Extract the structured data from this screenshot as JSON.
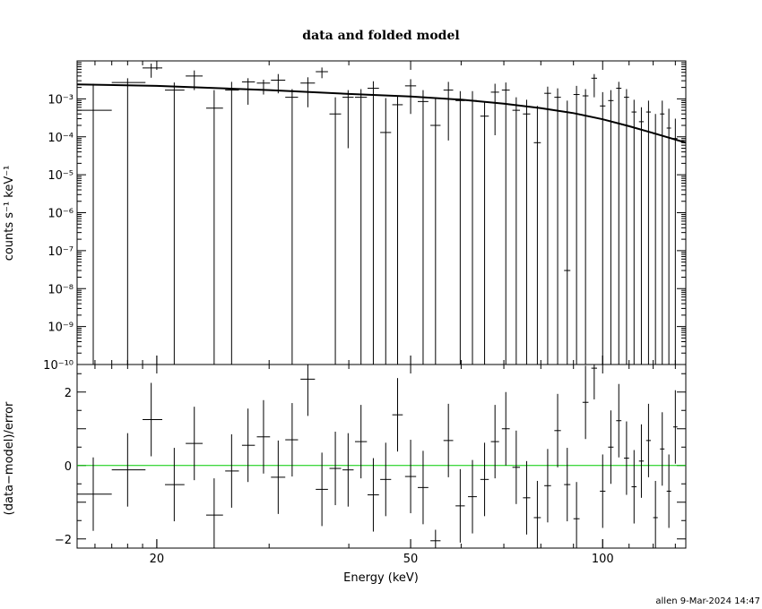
{
  "footer": "allen  9-Mar-2024 14:47",
  "chart_data": [
    {
      "type": "scatter",
      "title": "data and folded model",
      "xlabel": "",
      "ylabel": "counts s⁻¹ keV⁻¹",
      "xscale": "log",
      "yscale": "log",
      "xlim": [
        15,
        135
      ],
      "ylim": [
        1e-10,
        0.01
      ],
      "x_tick_labels": [],
      "y_ticks": [
        {
          "value": 0.001,
          "label": "10⁻³"
        },
        {
          "value": 0.0001,
          "label": "10⁻⁴"
        },
        {
          "value": 1e-05,
          "label": "10⁻⁵"
        },
        {
          "value": 1e-06,
          "label": "10⁻⁶"
        },
        {
          "value": 1e-07,
          "label": "10⁻⁷"
        },
        {
          "value": 1e-08,
          "label": "10⁻⁸"
        },
        {
          "value": 1e-09,
          "label": "10⁻⁹"
        },
        {
          "value": 1e-10,
          "label": "10⁻¹⁰"
        }
      ],
      "model": {
        "x": [
          15,
          20,
          30,
          40,
          50,
          60,
          70,
          80,
          90,
          100,
          110,
          120,
          135
        ],
        "y": [
          0.0024,
          0.0022,
          0.0017,
          0.00135,
          0.00115,
          0.00095,
          0.00075,
          0.00057,
          0.00042,
          0.00029,
          0.00019,
          0.000125,
          7e-05
        ]
      },
      "data": [
        {
          "x": 15.9,
          "xlo": 14.9,
          "xhi": 17.0,
          "y": 0.0005,
          "ylo": 1e-10,
          "yhi": 0.0025
        },
        {
          "x": 18.0,
          "xlo": 17.0,
          "xhi": 19.2,
          "y": 0.0027,
          "ylo": 1e-10,
          "yhi": 0.0035
        },
        {
          "x": 19.6,
          "xlo": 19.0,
          "xhi": 20.4,
          "y": 0.0065,
          "ylo": 0.0036,
          "yhi": 0.0085
        },
        {
          "x": 21.3,
          "xlo": 20.6,
          "xhi": 22.1,
          "y": 0.0017,
          "ylo": 1e-10,
          "yhi": 0.0027
        },
        {
          "x": 22.9,
          "xlo": 22.2,
          "xhi": 23.6,
          "y": 0.004,
          "ylo": 0.0017,
          "yhi": 0.0056
        },
        {
          "x": 24.6,
          "xlo": 23.9,
          "xhi": 25.4,
          "y": 0.00057,
          "ylo": 1e-10,
          "yhi": 0.0017
        },
        {
          "x": 26.2,
          "xlo": 25.6,
          "xhi": 26.9,
          "y": 0.0017,
          "ylo": 1e-10,
          "yhi": 0.0028
        },
        {
          "x": 27.8,
          "xlo": 27.2,
          "xhi": 28.5,
          "y": 0.0028,
          "ylo": 0.0007,
          "yhi": 0.0035
        },
        {
          "x": 29.4,
          "xlo": 28.7,
          "xhi": 30.1,
          "y": 0.0026,
          "ylo": 0.0013,
          "yhi": 0.0032
        },
        {
          "x": 31.0,
          "xlo": 30.2,
          "xhi": 31.8,
          "y": 0.0031,
          "ylo": 0.0014,
          "yhi": 0.0045
        },
        {
          "x": 32.6,
          "xlo": 31.8,
          "xhi": 33.3,
          "y": 0.0011,
          "ylo": 1e-10,
          "yhi": 0.0018
        },
        {
          "x": 34.5,
          "xlo": 33.6,
          "xhi": 35.4,
          "y": 0.0026,
          "ylo": 0.0006,
          "yhi": 0.0037
        },
        {
          "x": 36.3,
          "xlo": 35.5,
          "xhi": 37.1,
          "y": 0.0052,
          "ylo": 0.0035,
          "yhi": 0.0067
        },
        {
          "x": 38.1,
          "xlo": 37.3,
          "xhi": 38.9,
          "y": 0.0004,
          "ylo": 1e-10,
          "yhi": 0.0011
        },
        {
          "x": 39.9,
          "xlo": 39.1,
          "xhi": 40.7,
          "y": 0.0011,
          "ylo": 5e-05,
          "yhi": 0.0017
        },
        {
          "x": 41.8,
          "xlo": 40.9,
          "xhi": 42.7,
          "y": 0.0011,
          "ylo": 1e-10,
          "yhi": 0.0018
        },
        {
          "x": 43.7,
          "xlo": 42.8,
          "xhi": 44.6,
          "y": 0.0019,
          "ylo": 1e-10,
          "yhi": 0.0029
        },
        {
          "x": 45.7,
          "xlo": 44.8,
          "xhi": 46.6,
          "y": 0.00013,
          "ylo": 1e-10,
          "yhi": 0.00105
        },
        {
          "x": 47.7,
          "xlo": 46.8,
          "xhi": 48.6,
          "y": 0.0007,
          "ylo": 1e-10,
          "yhi": 0.0012
        },
        {
          "x": 50.0,
          "xlo": 49.0,
          "xhi": 51.0,
          "y": 0.0022,
          "ylo": 0.0004,
          "yhi": 0.0033
        },
        {
          "x": 52.3,
          "xlo": 51.3,
          "xhi": 53.3,
          "y": 0.00085,
          "ylo": 1e-10,
          "yhi": 0.0017
        },
        {
          "x": 54.7,
          "xlo": 53.7,
          "xhi": 55.7,
          "y": 0.0002,
          "ylo": 1e-10,
          "yhi": 0.0011
        },
        {
          "x": 57.3,
          "xlo": 56.3,
          "xhi": 58.3,
          "y": 0.0017,
          "ylo": 8e-05,
          "yhi": 0.0028
        },
        {
          "x": 59.8,
          "xlo": 58.8,
          "xhi": 60.8,
          "y": 0.0009,
          "ylo": 1e-10,
          "yhi": 0.0016
        },
        {
          "x": 62.5,
          "xlo": 61.5,
          "xhi": 63.5,
          "y": 0.0009,
          "ylo": 1e-10,
          "yhi": 0.0016
        },
        {
          "x": 65.3,
          "xlo": 64.3,
          "xhi": 66.3,
          "y": 0.00035,
          "ylo": 1e-10,
          "yhi": 0.00085
        },
        {
          "x": 67.8,
          "xlo": 66.8,
          "xhi": 68.8,
          "y": 0.0015,
          "ylo": 0.00011,
          "yhi": 0.0025
        },
        {
          "x": 70.5,
          "xlo": 69.5,
          "xhi": 71.5,
          "y": 0.0017,
          "ylo": 1e-10,
          "yhi": 0.0027
        },
        {
          "x": 73.2,
          "xlo": 72.2,
          "xhi": 74.2,
          "y": 0.0005,
          "ylo": 1e-10,
          "yhi": 0.0011
        },
        {
          "x": 76.0,
          "xlo": 75.0,
          "xhi": 77.0,
          "y": 0.0004,
          "ylo": 1e-10,
          "yhi": 0.00095
        },
        {
          "x": 79.0,
          "xlo": 78.0,
          "xhi": 80.0,
          "y": 7e-05,
          "ylo": 1e-10,
          "yhi": 0.00065
        },
        {
          "x": 82.0,
          "xlo": 81.0,
          "xhi": 83.0,
          "y": 0.0014,
          "ylo": 1e-10,
          "yhi": 0.0021
        },
        {
          "x": 85.0,
          "xlo": 84.0,
          "xhi": 86.0,
          "y": 0.0011,
          "ylo": 1e-10,
          "yhi": 0.0019
        },
        {
          "x": 88.0,
          "xlo": 87.0,
          "xhi": 89.0,
          "y": 3e-08,
          "ylo": 1e-10,
          "yhi": 0.0009
        },
        {
          "x": 91.0,
          "xlo": 90.0,
          "xhi": 92.0,
          "y": 0.0013,
          "ylo": 1e-10,
          "yhi": 0.0022
        },
        {
          "x": 94.0,
          "xlo": 93.0,
          "xhi": 95.0,
          "y": 0.0012,
          "ylo": 1e-10,
          "yhi": 0.0018
        },
        {
          "x": 97.0,
          "xlo": 96.0,
          "xhi": 98.0,
          "y": 0.0035,
          "ylo": 0.0011,
          "yhi": 0.0045
        },
        {
          "x": 100.0,
          "xlo": 99.0,
          "xhi": 101.0,
          "y": 0.00065,
          "ylo": 1e-10,
          "yhi": 0.0015
        },
        {
          "x": 103.0,
          "xlo": 102.0,
          "xhi": 104.0,
          "y": 0.0009,
          "ylo": 1e-10,
          "yhi": 0.0017
        },
        {
          "x": 106.0,
          "xlo": 105.0,
          "xhi": 107.0,
          "y": 0.0019,
          "ylo": 1e-10,
          "yhi": 0.0028
        },
        {
          "x": 109.0,
          "xlo": 108.0,
          "xhi": 110.0,
          "y": 0.0011,
          "ylo": 1e-10,
          "yhi": 0.0018
        },
        {
          "x": 112.0,
          "xlo": 111.0,
          "xhi": 113.0,
          "y": 0.00045,
          "ylo": 1e-10,
          "yhi": 0.00095
        },
        {
          "x": 115.0,
          "xlo": 114.0,
          "xhi": 116.0,
          "y": 0.00025,
          "ylo": 1e-10,
          "yhi": 0.0006
        },
        {
          "x": 118.0,
          "xlo": 117.0,
          "xhi": 119.0,
          "y": 0.00045,
          "ylo": 1e-10,
          "yhi": 0.0009
        },
        {
          "x": 121.0,
          "xlo": 120.0,
          "xhi": 122.0,
          "y": 0.00012,
          "ylo": 1e-10,
          "yhi": 0.0004
        },
        {
          "x": 124.0,
          "xlo": 123.0,
          "xhi": 125.0,
          "y": 0.0004,
          "ylo": 1e-10,
          "yhi": 0.0009
        },
        {
          "x": 127.0,
          "xlo": 126.0,
          "xhi": 128.0,
          "y": 0.00017,
          "ylo": 1e-10,
          "yhi": 0.00055
        },
        {
          "x": 130.0,
          "xlo": 129.0,
          "xhi": 131.0,
          "y": 9e-05,
          "ylo": 1e-10,
          "yhi": 0.0003
        }
      ]
    },
    {
      "type": "scatter",
      "title": "",
      "xlabel": "Energy (keV)",
      "ylabel": "(data−model)/error",
      "xscale": "log",
      "xlim": [
        15,
        135
      ],
      "ylim": [
        -2.25,
        2.75
      ],
      "x_ticks": [
        {
          "value": 20,
          "label": "20"
        },
        {
          "value": 50,
          "label": "50"
        },
        {
          "value": 100,
          "label": "100"
        }
      ],
      "y_ticks": [
        {
          "value": 2,
          "label": "2"
        },
        {
          "value": 0,
          "label": "0"
        },
        {
          "value": -2,
          "label": "−2"
        }
      ],
      "zero_line": {
        "y": 0,
        "color": "#00cc00"
      },
      "data": [
        {
          "x": 15.9,
          "xlo": 14.9,
          "xhi": 17.0,
          "y": -0.78,
          "err": 1.0
        },
        {
          "x": 18.0,
          "xlo": 17.0,
          "xhi": 19.2,
          "y": -0.12,
          "err": 1.0
        },
        {
          "x": 19.6,
          "xlo": 19.0,
          "xhi": 20.4,
          "y": 1.25,
          "err": 1.0
        },
        {
          "x": 21.3,
          "xlo": 20.6,
          "xhi": 22.1,
          "y": -0.52,
          "err": 1.0
        },
        {
          "x": 22.9,
          "xlo": 22.2,
          "xhi": 23.6,
          "y": 0.6,
          "err": 1.0
        },
        {
          "x": 24.6,
          "xlo": 23.9,
          "xhi": 25.4,
          "y": -1.35,
          "err": 1.0
        },
        {
          "x": 26.2,
          "xlo": 25.6,
          "xhi": 26.9,
          "y": -0.15,
          "err": 1.0
        },
        {
          "x": 27.8,
          "xlo": 27.2,
          "xhi": 28.5,
          "y": 0.55,
          "err": 1.0
        },
        {
          "x": 29.4,
          "xlo": 28.7,
          "xhi": 30.1,
          "y": 0.78,
          "err": 1.0
        },
        {
          "x": 31.0,
          "xlo": 30.2,
          "xhi": 31.8,
          "y": -0.32,
          "err": 1.0
        },
        {
          "x": 32.6,
          "xlo": 31.8,
          "xhi": 33.3,
          "y": 0.7,
          "err": 1.0
        },
        {
          "x": 34.5,
          "xlo": 33.6,
          "xhi": 35.4,
          "y": 2.35,
          "err": 1.0
        },
        {
          "x": 36.3,
          "xlo": 35.5,
          "xhi": 37.1,
          "y": -0.65,
          "err": 1.0
        },
        {
          "x": 38.1,
          "xlo": 37.3,
          "xhi": 38.9,
          "y": -0.08,
          "err": 1.0
        },
        {
          "x": 39.9,
          "xlo": 39.1,
          "xhi": 40.7,
          "y": -0.12,
          "err": 1.0
        },
        {
          "x": 41.8,
          "xlo": 40.9,
          "xhi": 42.7,
          "y": 0.65,
          "err": 1.0
        },
        {
          "x": 43.7,
          "xlo": 42.8,
          "xhi": 44.6,
          "y": -0.8,
          "err": 1.0
        },
        {
          "x": 45.7,
          "xlo": 44.8,
          "xhi": 46.6,
          "y": -0.38,
          "err": 1.0
        },
        {
          "x": 47.7,
          "xlo": 46.8,
          "xhi": 48.6,
          "y": 1.38,
          "err": 1.0
        },
        {
          "x": 50.0,
          "xlo": 49.0,
          "xhi": 51.0,
          "y": -0.3,
          "err": 1.0
        },
        {
          "x": 52.3,
          "xlo": 51.3,
          "xhi": 53.3,
          "y": -0.6,
          "err": 1.0
        },
        {
          "x": 54.7,
          "xlo": 53.7,
          "xhi": 55.7,
          "y": -2.05,
          "err": 0.3
        },
        {
          "x": 57.3,
          "xlo": 56.3,
          "xhi": 58.3,
          "y": 0.68,
          "err": 1.0
        },
        {
          "x": 59.8,
          "xlo": 58.8,
          "xhi": 60.8,
          "y": -1.1,
          "err": 1.0
        },
        {
          "x": 62.5,
          "xlo": 61.5,
          "xhi": 63.5,
          "y": -0.85,
          "err": 1.0
        },
        {
          "x": 65.3,
          "xlo": 64.3,
          "xhi": 66.3,
          "y": -0.38,
          "err": 1.0
        },
        {
          "x": 67.8,
          "xlo": 66.8,
          "xhi": 68.8,
          "y": 0.65,
          "err": 1.0
        },
        {
          "x": 70.5,
          "xlo": 69.5,
          "xhi": 71.5,
          "y": 1.0,
          "err": 1.0
        },
        {
          "x": 73.2,
          "xlo": 72.2,
          "xhi": 74.2,
          "y": -0.05,
          "err": 1.0
        },
        {
          "x": 76.0,
          "xlo": 75.0,
          "xhi": 77.0,
          "y": -0.88,
          "err": 1.0
        },
        {
          "x": 79.0,
          "xlo": 78.0,
          "xhi": 80.0,
          "y": -1.42,
          "err": 1.0
        },
        {
          "x": 82.0,
          "xlo": 81.0,
          "xhi": 83.0,
          "y": -0.55,
          "err": 1.0
        },
        {
          "x": 85.0,
          "xlo": 84.0,
          "xhi": 86.0,
          "y": 0.95,
          "err": 1.0
        },
        {
          "x": 88.0,
          "xlo": 87.0,
          "xhi": 89.0,
          "y": -0.52,
          "err": 1.0
        },
        {
          "x": 91.0,
          "xlo": 90.0,
          "xhi": 92.0,
          "y": -1.45,
          "err": 1.0
        },
        {
          "x": 94.0,
          "xlo": 93.0,
          "xhi": 95.0,
          "y": 1.72,
          "err": 1.0
        },
        {
          "x": 97.0,
          "xlo": 96.0,
          "xhi": 98.0,
          "y": 2.65,
          "err": 0.85
        },
        {
          "x": 100.0,
          "xlo": 99.0,
          "xhi": 101.0,
          "y": -0.7,
          "err": 1.0
        },
        {
          "x": 103.0,
          "xlo": 102.0,
          "xhi": 104.0,
          "y": 0.5,
          "err": 1.0
        },
        {
          "x": 106.0,
          "xlo": 105.0,
          "xhi": 107.0,
          "y": 1.22,
          "err": 1.0
        },
        {
          "x": 109.0,
          "xlo": 108.0,
          "xhi": 110.0,
          "y": 0.2,
          "err": 1.0
        },
        {
          "x": 112.0,
          "xlo": 111.0,
          "xhi": 113.0,
          "y": -0.58,
          "err": 1.0
        },
        {
          "x": 115.0,
          "xlo": 114.0,
          "xhi": 116.0,
          "y": 0.12,
          "err": 1.0
        },
        {
          "x": 118.0,
          "xlo": 117.0,
          "xhi": 119.0,
          "y": 0.68,
          "err": 1.0
        },
        {
          "x": 121.0,
          "xlo": 120.0,
          "xhi": 122.0,
          "y": -1.42,
          "err": 1.0
        },
        {
          "x": 124.0,
          "xlo": 123.0,
          "xhi": 125.0,
          "y": 0.45,
          "err": 1.0
        },
        {
          "x": 127.0,
          "xlo": 126.0,
          "xhi": 128.0,
          "y": -0.7,
          "err": 1.0
        },
        {
          "x": 130.0,
          "xlo": 129.0,
          "xhi": 131.0,
          "y": 1.05,
          "err": 1.0
        }
      ]
    }
  ]
}
